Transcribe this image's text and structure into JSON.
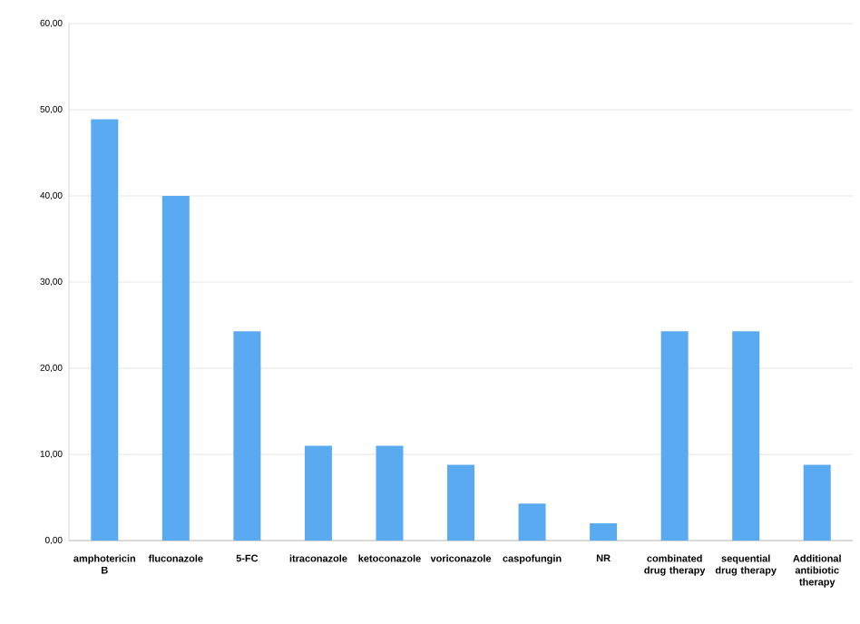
{
  "chart_data": {
    "type": "bar",
    "categories": [
      "amphotericin B",
      "fluconazole",
      "5-FC",
      "itraconazole",
      "ketoconazole",
      "voriconazole",
      "caspofungin",
      "NR",
      "combinated drug therapy",
      "sequential drug therapy",
      "Additional antibiotic therapy"
    ],
    "values": [
      48.9,
      40.0,
      24.3,
      11.0,
      11.0,
      8.8,
      4.3,
      2.0,
      24.3,
      24.3,
      8.8
    ],
    "color": "#5aaaf2",
    "ylim": [
      0,
      60
    ],
    "yticks": [
      {
        "value": 0,
        "label": "0,00"
      },
      {
        "value": 10,
        "label": "10,00"
      },
      {
        "value": 20,
        "label": "20,00"
      },
      {
        "value": 30,
        "label": "30,00"
      },
      {
        "value": 40,
        "label": "40,00"
      },
      {
        "value": 50,
        "label": "50,00"
      },
      {
        "value": 60,
        "label": "60,00"
      }
    ],
    "grid": "y"
  }
}
